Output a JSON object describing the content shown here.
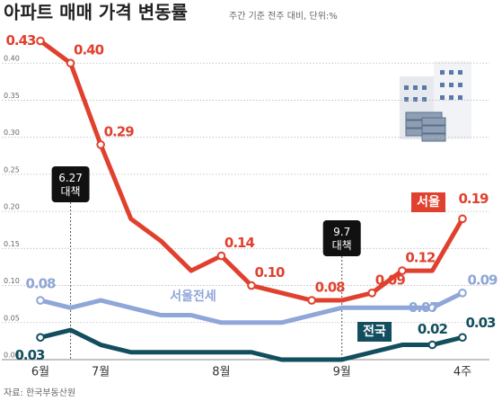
{
  "chart_data": {
    "type": "line",
    "title": "아파트 매매 가격 변동률",
    "subtitle": "주간 기준 전주 대비, 단위:%",
    "source": "자료: 한국부동산원",
    "categories": [
      "6월",
      null,
      "7월",
      null,
      null,
      null,
      "8월",
      null,
      null,
      null,
      "9월",
      null,
      null,
      null,
      "4주"
    ],
    "series": [
      {
        "name": "서울전세",
        "color": "#8fa6d8",
        "values": [
          0.08,
          0.07,
          0.08,
          0.07,
          0.06,
          0.06,
          0.05,
          0.05,
          0.05,
          0.06,
          0.07,
          0.07,
          0.07,
          0.07,
          0.09
        ],
        "value_labels": [
          "0.08",
          null,
          null,
          null,
          null,
          null,
          null,
          null,
          null,
          null,
          null,
          null,
          null,
          "0.07",
          "0.09"
        ]
      },
      {
        "name": "전국",
        "color": "#124e5e",
        "values": [
          0.03,
          0.04,
          0.02,
          0.01,
          0.01,
          0.01,
          0.01,
          0.01,
          0.0,
          0.0,
          0.0,
          0.01,
          0.02,
          0.02,
          0.03
        ],
        "value_labels": [
          "0.03",
          null,
          null,
          null,
          null,
          null,
          null,
          null,
          null,
          null,
          null,
          null,
          null,
          "0.02",
          "0.03"
        ]
      },
      {
        "name": "서울",
        "color": "#e0412f",
        "values": [
          0.43,
          0.4,
          0.29,
          0.19,
          0.16,
          0.12,
          0.14,
          0.1,
          0.09,
          0.08,
          0.08,
          0.09,
          0.12,
          0.12,
          0.19
        ],
        "value_labels": [
          "0.43",
          "0.40",
          "0.29",
          null,
          null,
          null,
          "0.14",
          "0.10",
          null,
          "0.08",
          null,
          "0.09",
          "0.12",
          null,
          "0.19"
        ]
      }
    ],
    "ylim": [
      0,
      0.45
    ],
    "yticks": [
      {
        "value": 0,
        "label": "0.00"
      },
      {
        "value": 0.05,
        "label": "0.05"
      },
      {
        "value": 0.1,
        "label": "0.10"
      },
      {
        "value": 0.15,
        "label": "0.15"
      },
      {
        "value": 0.2,
        "label": "0.20"
      },
      {
        "value": 0.25,
        "label": "0.25"
      },
      {
        "value": 0.3,
        "label": "0.30"
      },
      {
        "value": 0.35,
        "label": "0.35"
      },
      {
        "value": 0.4,
        "label": "0.40"
      }
    ],
    "grid": true,
    "annotations": [
      {
        "index": 1,
        "text": "6.27\n대책"
      },
      {
        "index": 10,
        "text": "9.7\n대책"
      }
    ]
  }
}
